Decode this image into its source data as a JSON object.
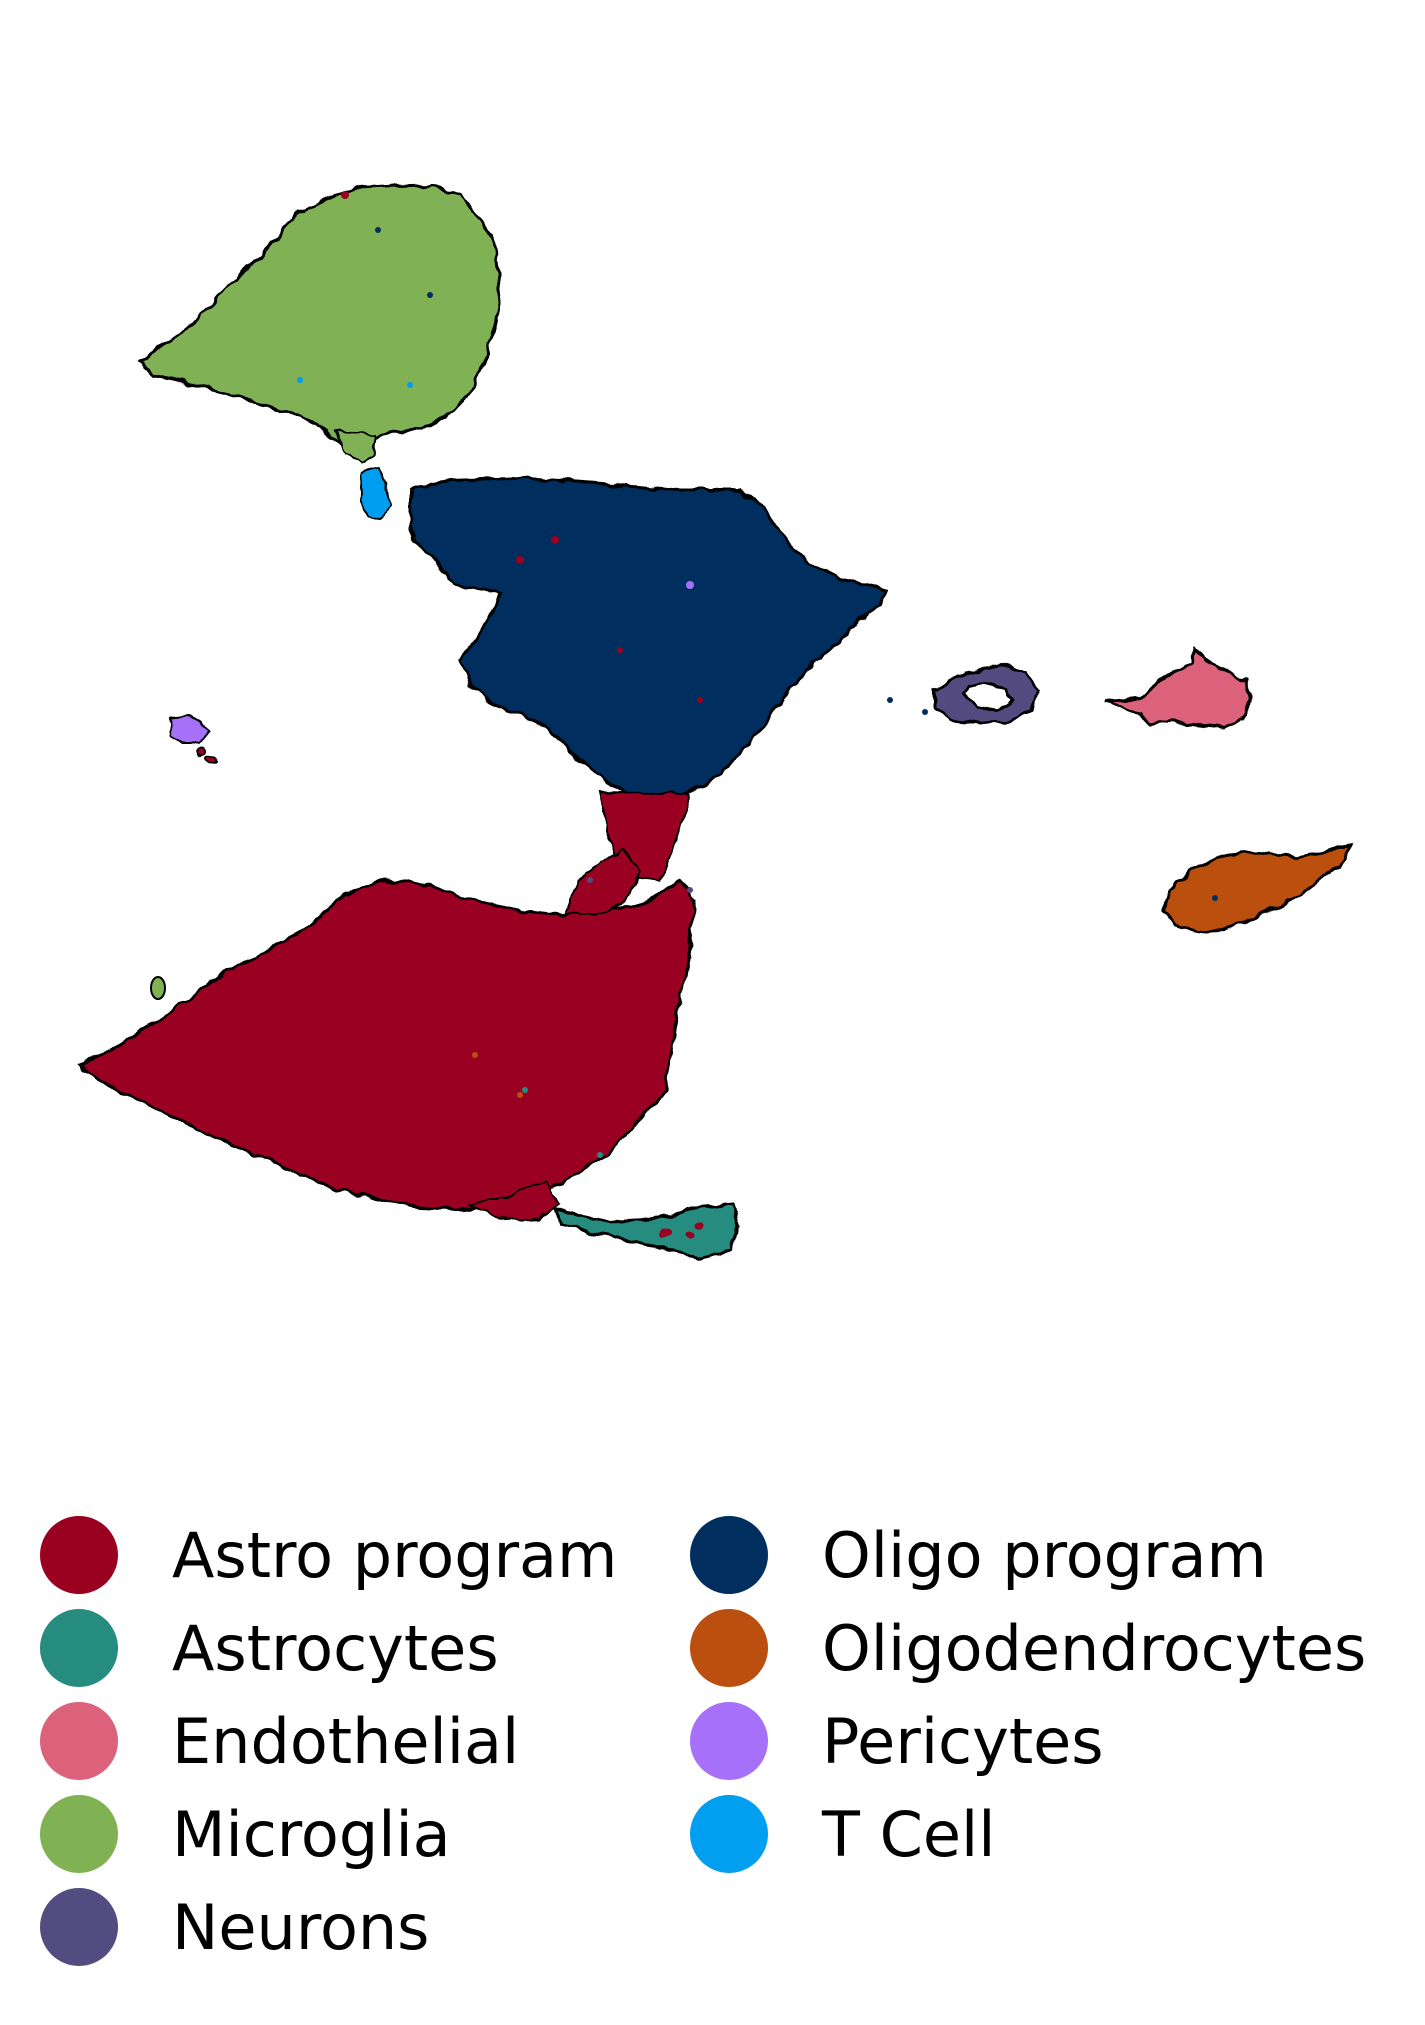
{
  "chart_data": {
    "type": "scatter",
    "title": "",
    "xlabel": "",
    "ylabel": "",
    "axes_visible": false,
    "grid": false,
    "legend_position": "bottom",
    "legend_columns": 2,
    "point_outline_color": "#000000",
    "series": [
      {
        "name": "Astro program",
        "color": "#9a0020",
        "approx_center": [
          -3.5,
          -6.0
        ],
        "spread": "large"
      },
      {
        "name": "Astrocytes",
        "color": "#268c80",
        "approx_center": [
          3.0,
          -11.0
        ],
        "spread": "elongated tail"
      },
      {
        "name": "Endothelial",
        "color": "#dc627b",
        "approx_center": [
          11.0,
          2.5
        ],
        "spread": "small"
      },
      {
        "name": "Microglia",
        "color": "#80b254",
        "approx_center": [
          -6.0,
          9.5
        ],
        "spread": "large"
      },
      {
        "name": "Neurons",
        "color": "#534c80",
        "approx_center": [
          7.0,
          2.5
        ],
        "spread": "small ring"
      },
      {
        "name": "Oligo program",
        "color": "#002f5f",
        "approx_center": [
          2.0,
          3.5
        ],
        "spread": "large"
      },
      {
        "name": "Oligodendrocytes",
        "color": "#bb4f0f",
        "approx_center": [
          11.5,
          -2.0
        ],
        "spread": "small"
      },
      {
        "name": "Pericytes",
        "color": "#a670f8",
        "approx_center": [
          -9.5,
          1.5
        ],
        "spread": "tiny"
      },
      {
        "name": "T Cell",
        "color": "#029ef0",
        "approx_center": [
          -4.0,
          5.5
        ],
        "spread": "tiny"
      }
    ]
  }
}
